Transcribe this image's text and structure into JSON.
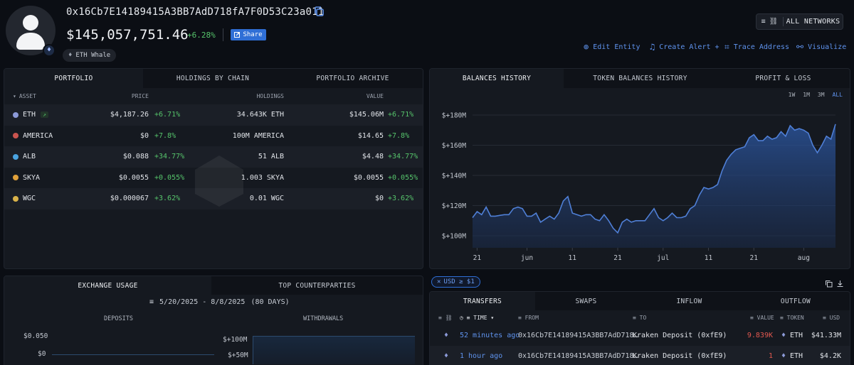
{
  "header": {
    "address": "0x16Cb7E14189415A3BB7AdD718fA7F0D53C23a011",
    "balance": "$145,057,751.46",
    "change": "+6.28%",
    "share_label": "Share",
    "tag": "ETH Whale",
    "networks_label": "ALL NETWORKS",
    "actions": [
      "Edit Entity",
      "Create Alert +",
      "Trace Address",
      "Visualize"
    ]
  },
  "portfolio": {
    "tabs": [
      "PORTFOLIO",
      "HOLDINGS BY CHAIN",
      "PORTFOLIO ARCHIVE"
    ],
    "columns": [
      "ASSET",
      "PRICE",
      "HOLDINGS",
      "VALUE"
    ],
    "rows": [
      {
        "asset": "ETH",
        "price": "$4,187.26",
        "price_change": "+6.71%",
        "holdings": "34.643K ETH",
        "value": "$145.06M",
        "value_change": "+6.71%",
        "color": "#8c9ad8"
      },
      {
        "asset": "AMERICA",
        "price": "$0",
        "price_change": "+7.8%",
        "holdings": "100M AMERICA",
        "value": "$14.65",
        "value_change": "+7.8%",
        "color": "#c9544f"
      },
      {
        "asset": "ALB",
        "price": "$0.088",
        "price_change": "+34.77%",
        "holdings": "51 ALB",
        "value": "$4.48",
        "value_change": "+34.77%",
        "color": "#4aa3e0"
      },
      {
        "asset": "SKYA",
        "price": "$0.0055",
        "price_change": "+0.055%",
        "holdings": "1.003 SKYA",
        "value": "$0.0055",
        "value_change": "+0.055%",
        "color": "#e0a13a"
      },
      {
        "asset": "WGC",
        "price": "$0.000067",
        "price_change": "+3.62%",
        "holdings": "0.01 WGC",
        "value": "$0",
        "value_change": "+3.62%",
        "color": "#d9b24a"
      }
    ]
  },
  "history": {
    "tabs": [
      "BALANCES HISTORY",
      "TOKEN BALANCES HISTORY",
      "PROFIT & LOSS"
    ],
    "ranges": [
      "1W",
      "1M",
      "3M",
      "ALL"
    ]
  },
  "chart_data": {
    "type": "area",
    "title": "",
    "xlabel": "",
    "ylabel": "",
    "yticks": [
      "$+100M",
      "$+120M",
      "$+140M",
      "$+160M",
      "$+180M"
    ],
    "xticks": [
      "21",
      "jun",
      "11",
      "21",
      "jul",
      "11",
      "21",
      "aug"
    ],
    "ylim": [
      92,
      188
    ],
    "x": [
      "2025-05-20",
      "2025-05-21",
      "2025-05-22",
      "2025-05-23",
      "2025-05-24",
      "2025-05-25",
      "2025-05-26",
      "2025-05-27",
      "2025-05-28",
      "2025-05-29",
      "2025-05-30",
      "2025-05-31",
      "2025-06-01",
      "2025-06-02",
      "2025-06-03",
      "2025-06-04",
      "2025-06-05",
      "2025-06-06",
      "2025-06-07",
      "2025-06-08",
      "2025-06-09",
      "2025-06-10",
      "2025-06-11",
      "2025-06-12",
      "2025-06-13",
      "2025-06-14",
      "2025-06-15",
      "2025-06-16",
      "2025-06-17",
      "2025-06-18",
      "2025-06-19",
      "2025-06-20",
      "2025-06-21",
      "2025-06-22",
      "2025-06-23",
      "2025-06-24",
      "2025-06-25",
      "2025-06-26",
      "2025-06-27",
      "2025-06-28",
      "2025-06-29",
      "2025-06-30",
      "2025-07-01",
      "2025-07-02",
      "2025-07-03",
      "2025-07-04",
      "2025-07-05",
      "2025-07-06",
      "2025-07-07",
      "2025-07-08",
      "2025-07-09",
      "2025-07-10",
      "2025-07-11",
      "2025-07-12",
      "2025-07-13",
      "2025-07-14",
      "2025-07-15",
      "2025-07-16",
      "2025-07-17",
      "2025-07-18",
      "2025-07-19",
      "2025-07-20",
      "2025-07-21",
      "2025-07-22",
      "2025-07-23",
      "2025-07-24",
      "2025-07-25",
      "2025-07-26",
      "2025-07-27",
      "2025-07-28",
      "2025-07-29",
      "2025-07-30",
      "2025-07-31",
      "2025-08-01",
      "2025-08-02",
      "2025-08-03",
      "2025-08-04",
      "2025-08-05",
      "2025-08-06",
      "2025-08-07",
      "2025-08-08"
    ],
    "values": [
      112,
      116,
      114,
      119,
      113,
      113,
      113.5,
      114,
      114,
      118,
      119,
      118,
      113,
      113,
      115,
      109,
      111,
      113,
      111,
      115,
      123,
      126,
      115,
      114,
      113,
      114,
      114,
      111,
      110,
      114,
      110,
      105,
      102,
      109,
      111,
      109,
      110,
      110,
      110,
      114,
      118,
      112,
      110,
      112,
      115,
      112,
      112,
      113,
      118,
      120,
      127,
      132,
      131,
      132,
      134,
      143,
      150,
      154,
      157,
      158,
      159,
      165,
      167,
      163,
      163,
      166,
      164,
      165,
      169,
      166,
      173,
      170,
      171,
      170,
      168,
      160,
      155,
      160,
      166,
      164,
      174
    ]
  },
  "exchange": {
    "tabs": [
      "EXCHANGE USAGE",
      "TOP COUNTERPARTIES"
    ],
    "date_range": "5/20/2025 - 8/8/2025",
    "days": "(80 DAYS)",
    "deposits_label": "DEPOSITS",
    "withdrawals_label": "WITHDRAWALS",
    "dep_ticks": [
      "$0.050",
      "$0"
    ],
    "wd_ticks": [
      "$+100M",
      "$+50M"
    ]
  },
  "transfers": {
    "filter": "USD ≥ $1",
    "tabs": [
      "TRANSFERS",
      "SWAPS",
      "INFLOW",
      "OUTFLOW"
    ],
    "columns": {
      "time": "TIME",
      "from": "FROM",
      "to": "TO",
      "value": "VALUE",
      "token": "TOKEN",
      "usd": "USD"
    },
    "rows": [
      {
        "time": "52 minutes ago",
        "from": "0x16Cb7E14189415A3BB7AdD718…",
        "to": "Kraken Deposit (0xfE9)",
        "value": "9.839K",
        "token": "ETH",
        "usd": "$41.33M"
      },
      {
        "time": "1 hour ago",
        "from": "0x16Cb7E14189415A3BB7AdD718…",
        "to": "Kraken Deposit (0xfE9)",
        "value": "1",
        "token": "ETH",
        "usd": "$4.2K"
      }
    ]
  },
  "colors": {
    "accent": "#2f6fd6",
    "positive": "#56c46b",
    "negative": "#e2584f",
    "chart_line": "#4f7fd6"
  }
}
